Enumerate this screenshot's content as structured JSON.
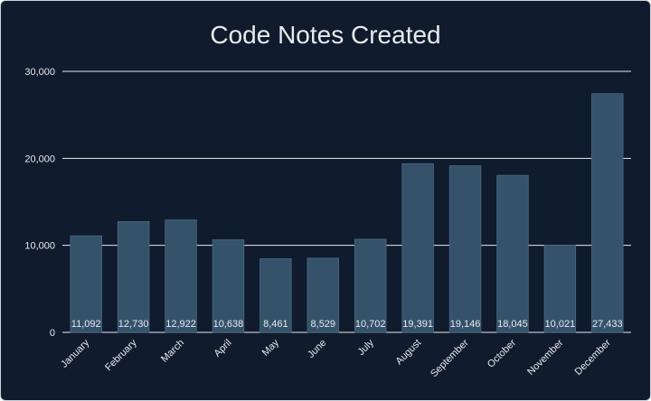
{
  "chart_data": {
    "type": "bar",
    "title": "Code Notes Created",
    "xlabel": "",
    "ylabel": "",
    "categories": [
      "January",
      "February",
      "March",
      "April",
      "May",
      "June",
      "July",
      "August",
      "September",
      "October",
      "November",
      "December"
    ],
    "values": [
      11092,
      12730,
      12922,
      10638,
      8461,
      8529,
      10702,
      19391,
      19146,
      18045,
      10021,
      27433
    ],
    "data_labels": [
      "11,092",
      "12,730",
      "12,922",
      "10,638",
      "8,461",
      "8,529",
      "10,702",
      "19,391",
      "19,146",
      "18,045",
      "10,021",
      "27,433"
    ],
    "yticks": [
      0,
      10000,
      20000,
      30000
    ],
    "ytick_labels": [
      "0",
      "10,000",
      "20,000",
      "30,000"
    ],
    "ylim": [
      0,
      30000
    ],
    "grid": true,
    "legend": "none",
    "colors": {
      "background": "#111b2e",
      "bar": "#35526b",
      "bar_border": "#4a6a85",
      "gridline": "#e8eaed",
      "text": "#e8eaed"
    }
  }
}
